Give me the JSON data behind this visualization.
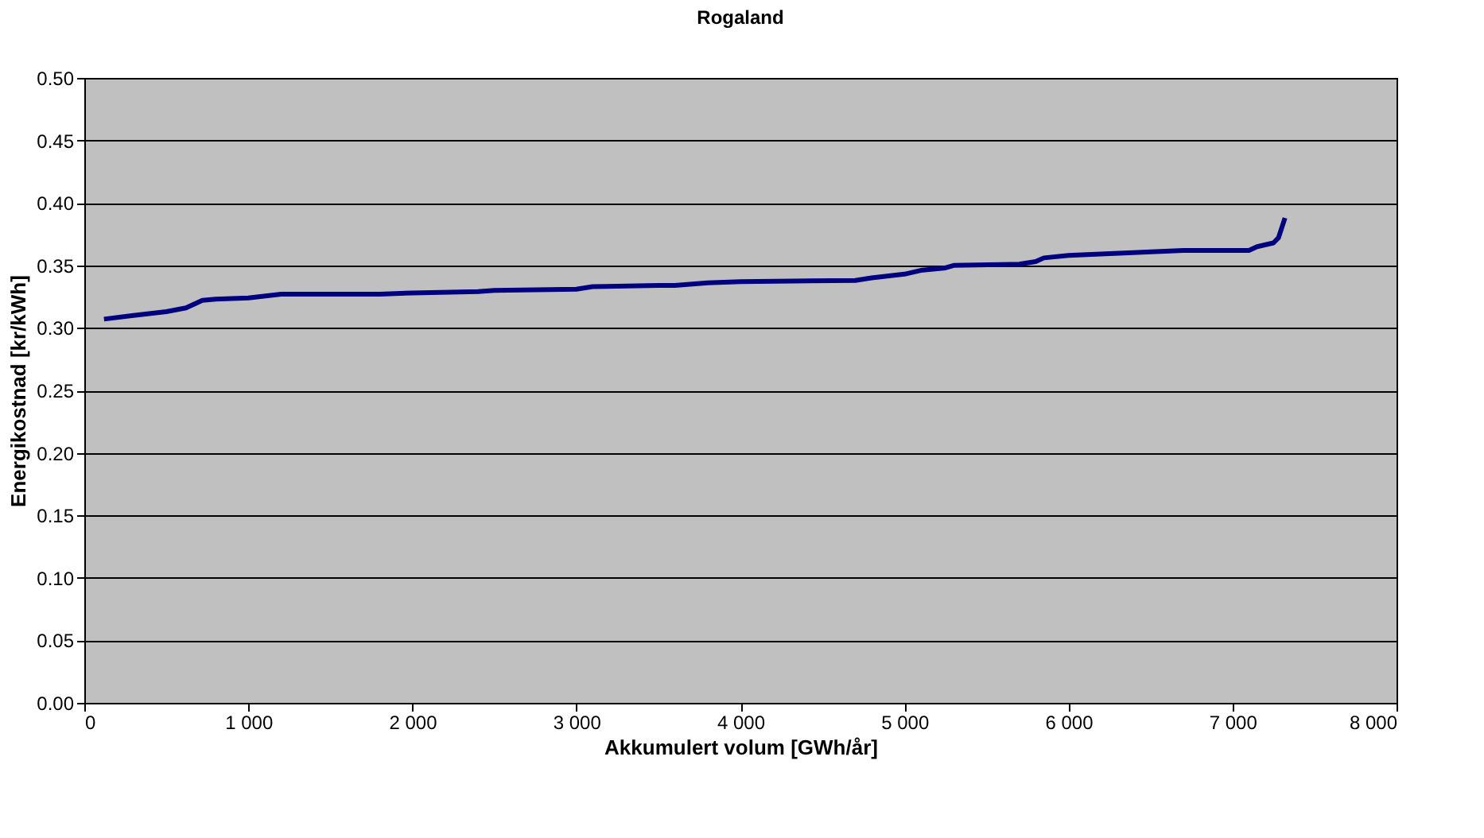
{
  "chart_data": {
    "type": "line",
    "title": "Rogaland",
    "xlabel": "Akkumulert volum [GWh/år]",
    "ylabel": "Energikostnad [kr/kWh]",
    "x": [
      120,
      300,
      500,
      620,
      720,
      800,
      1000,
      1200,
      1800,
      2000,
      2400,
      2500,
      3000,
      3100,
      3500,
      3600,
      3800,
      4000,
      4700,
      4800,
      5000,
      5100,
      5250,
      5300,
      5700,
      5800,
      5850,
      6000,
      6700,
      7100,
      7150,
      7250,
      7280,
      7320
    ],
    "series": [
      {
        "color": "#000080",
        "values": [
          0.307,
          0.31,
          0.313,
          0.316,
          0.322,
          0.323,
          0.324,
          0.327,
          0.327,
          0.328,
          0.329,
          0.33,
          0.331,
          0.333,
          0.334,
          0.334,
          0.336,
          0.337,
          0.338,
          0.34,
          0.343,
          0.346,
          0.348,
          0.35,
          0.351,
          0.353,
          0.356,
          0.358,
          0.362,
          0.362,
          0.365,
          0.368,
          0.372,
          0.388
        ]
      }
    ],
    "xlim": [
      0,
      8000
    ],
    "xticks": [
      {
        "value": 0,
        "label": "0"
      },
      {
        "value": 1000,
        "label": "1 000"
      },
      {
        "value": 2000,
        "label": "2 000"
      },
      {
        "value": 3000,
        "label": "3 000"
      },
      {
        "value": 4000,
        "label": "4 000"
      },
      {
        "value": 5000,
        "label": "5 000"
      },
      {
        "value": 6000,
        "label": "6 000"
      },
      {
        "value": 7000,
        "label": "7 000"
      },
      {
        "value": 8000,
        "label": "8 000"
      }
    ],
    "ylim": [
      0,
      0.5
    ],
    "yticks": [
      {
        "value": 0,
        "label": "0.00"
      },
      {
        "value": 0.05,
        "label": "0.05"
      },
      {
        "value": 0.1,
        "label": "0.10"
      },
      {
        "value": 0.15,
        "label": "0.15"
      },
      {
        "value": 0.2,
        "label": "0.20"
      },
      {
        "value": 0.25,
        "label": "0.25"
      },
      {
        "value": 0.3,
        "label": "0.30"
      },
      {
        "value": 0.35,
        "label": "0.35"
      },
      {
        "value": 0.4,
        "label": "0.40"
      },
      {
        "value": 0.45,
        "label": "0.45"
      },
      {
        "value": 0.5,
        "label": "0.50"
      }
    ],
    "grid": "y",
    "marker": "none",
    "line_style": "solid"
  }
}
